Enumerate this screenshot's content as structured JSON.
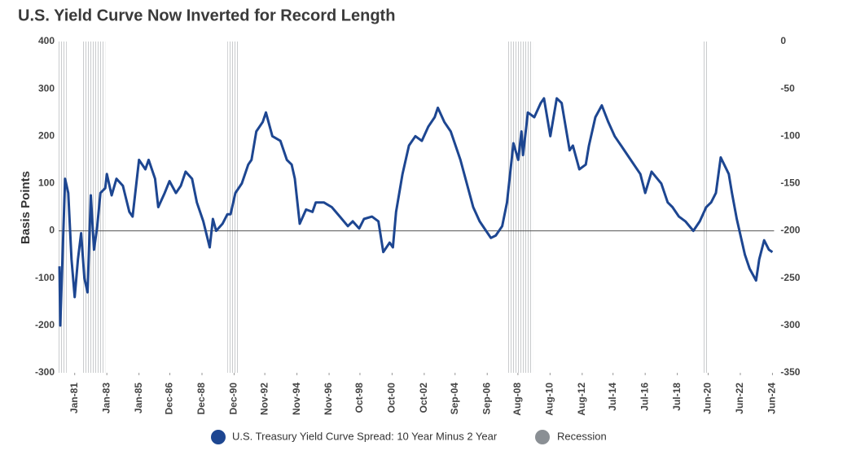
{
  "chart_data": {
    "type": "line",
    "title": "U.S. Yield Curve Now Inverted for Record Length",
    "y_label": "Basis Points",
    "xlim": [
      1980,
      2024.5
    ],
    "xticks": [
      {
        "value": 1981.0,
        "label": "Jan-81"
      },
      {
        "value": 1983.0,
        "label": "Jan-83"
      },
      {
        "value": 1985.0,
        "label": "Jan-85"
      },
      {
        "value": 1986.92,
        "label": "Dec-86"
      },
      {
        "value": 1988.92,
        "label": "Dec-88"
      },
      {
        "value": 1990.92,
        "label": "Dec-90"
      },
      {
        "value": 1992.83,
        "label": "Nov-92"
      },
      {
        "value": 1994.83,
        "label": "Nov-94"
      },
      {
        "value": 1996.83,
        "label": "Nov-96"
      },
      {
        "value": 1998.75,
        "label": "Oct-98"
      },
      {
        "value": 2000.75,
        "label": "Oct-00"
      },
      {
        "value": 2002.75,
        "label": "Oct-02"
      },
      {
        "value": 2004.67,
        "label": "Sep-04"
      },
      {
        "value": 2006.67,
        "label": "Sep-06"
      },
      {
        "value": 2008.58,
        "label": "Aug-08"
      },
      {
        "value": 2010.58,
        "label": "Aug-10"
      },
      {
        "value": 2012.58,
        "label": "Aug-12"
      },
      {
        "value": 2014.5,
        "label": "Jul-14"
      },
      {
        "value": 2016.5,
        "label": "Jul-16"
      },
      {
        "value": 2018.5,
        "label": "Jul-18"
      },
      {
        "value": 2020.42,
        "label": "Jun-20"
      },
      {
        "value": 2022.42,
        "label": "Jun-22"
      },
      {
        "value": 2024.42,
        "label": "Jun-24"
      }
    ],
    "ylim": [
      -300,
      400
    ],
    "yticks": [
      -300,
      -200,
      -100,
      0,
      100,
      200,
      300,
      400
    ],
    "y2lim": [
      -350,
      0
    ],
    "y2ticks": [
      -350,
      -300,
      -250,
      -200,
      -150,
      -100,
      -50,
      0
    ],
    "x": [
      1980.05,
      1980.1,
      1980.4,
      1980.6,
      1980.8,
      1981.0,
      1981.2,
      1981.4,
      1981.6,
      1981.8,
      1982.0,
      1982.2,
      1982.4,
      1982.6,
      1982.9,
      1983.0,
      1983.3,
      1983.6,
      1984.0,
      1984.4,
      1984.6,
      1985.0,
      1985.4,
      1985.6,
      1986.0,
      1986.2,
      1986.6,
      1986.9,
      1987.3,
      1987.6,
      1987.9,
      1988.3,
      1988.6,
      1989.0,
      1989.4,
      1989.6,
      1989.8,
      1990.2,
      1990.5,
      1990.7,
      1991.0,
      1991.4,
      1991.8,
      1992.0,
      1992.3,
      1992.7,
      1992.9,
      1993.3,
      1993.8,
      1994.2,
      1994.5,
      1994.7,
      1995.0,
      1995.4,
      1995.8,
      1996.0,
      1996.5,
      1997.0,
      1997.5,
      1998.0,
      1998.3,
      1998.7,
      1999.0,
      1999.5,
      1999.9,
      2000.2,
      2000.6,
      2000.8,
      2001.0,
      2001.4,
      2001.8,
      2002.2,
      2002.6,
      2003.0,
      2003.4,
      2003.6,
      2004.0,
      2004.4,
      2005.0,
      2005.8,
      2006.2,
      2006.6,
      2006.9,
      2007.2,
      2007.6,
      2007.9,
      2008.3,
      2008.6,
      2008.8,
      2008.9,
      2009.2,
      2009.6,
      2010.0,
      2010.2,
      2010.6,
      2011.0,
      2011.3,
      2011.8,
      2012.0,
      2012.4,
      2012.8,
      2013.0,
      2013.4,
      2013.8,
      2014.2,
      2014.6,
      2015.0,
      2015.6,
      2016.2,
      2016.5,
      2016.9,
      2017.5,
      2017.9,
      2018.2,
      2018.6,
      2019.0,
      2019.5,
      2019.9,
      2020.3,
      2020.6,
      2020.9,
      2021.2,
      2021.7,
      2021.9,
      2022.2,
      2022.7,
      2023.0,
      2023.4,
      2023.6,
      2023.9,
      2024.2,
      2024.42
    ],
    "series": [
      {
        "name": "U.S. Treasury Yield Curve Spread: 10 Year Minus 2 Year",
        "color": "#1d4691",
        "values": [
          -75,
          -200,
          110,
          80,
          -60,
          -140,
          -60,
          -5,
          -100,
          -130,
          75,
          -40,
          10,
          80,
          90,
          120,
          75,
          110,
          95,
          40,
          30,
          150,
          130,
          150,
          110,
          50,
          80,
          105,
          80,
          95,
          125,
          110,
          60,
          20,
          -35,
          25,
          0,
          15,
          35,
          35,
          80,
          100,
          140,
          150,
          210,
          230,
          250,
          200,
          190,
          150,
          140,
          110,
          15,
          45,
          40,
          60,
          60,
          50,
          30,
          10,
          20,
          5,
          25,
          30,
          20,
          -45,
          -25,
          -35,
          40,
          120,
          180,
          200,
          190,
          220,
          240,
          260,
          230,
          210,
          150,
          50,
          20,
          0,
          -15,
          -10,
          10,
          60,
          185,
          150,
          210,
          160,
          250,
          240,
          270,
          280,
          200,
          280,
          270,
          170,
          180,
          130,
          140,
          180,
          240,
          265,
          230,
          200,
          180,
          150,
          120,
          80,
          125,
          100,
          60,
          50,
          30,
          20,
          0,
          20,
          50,
          60,
          80,
          155,
          120,
          80,
          25,
          -50,
          -80,
          -105,
          -60,
          -20,
          -40,
          -45
        ]
      }
    ],
    "recession": {
      "name": "Recession",
      "color": "#8a8f94",
      "periods": [
        [
          1980.0,
          1980.5
        ],
        [
          1981.5,
          1982.9
        ],
        [
          1990.5,
          1991.2
        ],
        [
          2007.9,
          2009.5
        ],
        [
          2020.1,
          2020.4
        ]
      ]
    }
  }
}
